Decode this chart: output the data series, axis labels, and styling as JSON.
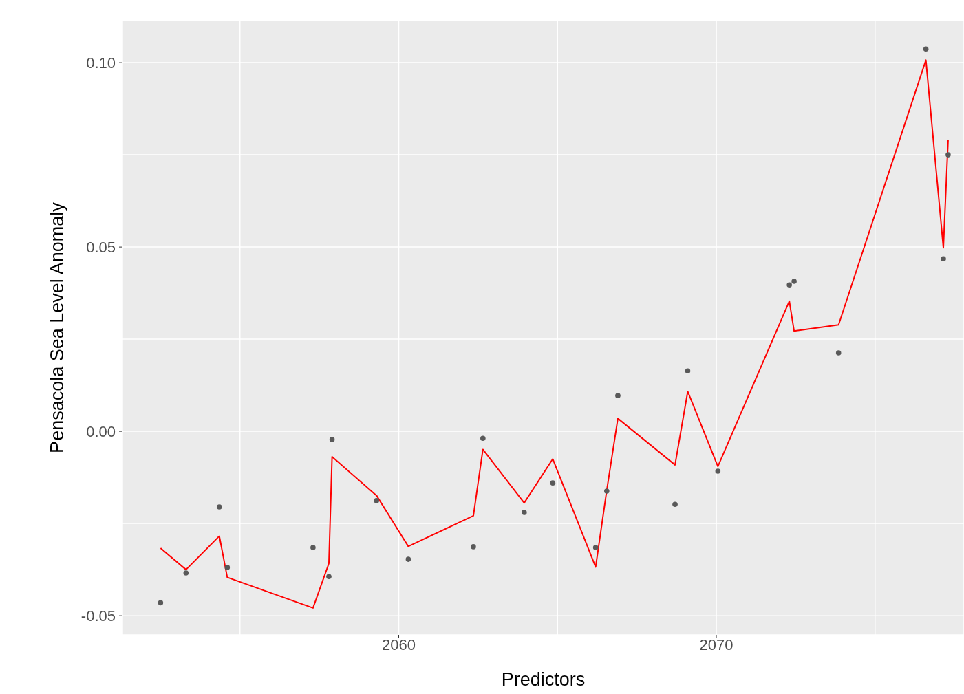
{
  "chart_data": {
    "type": "scatter",
    "xlabel": "Predictors",
    "ylabel": "Pensacola Sea Level Anomaly",
    "x": [
      2052.5,
      2053.3,
      2054.35,
      2054.6,
      2057.3,
      2057.8,
      2057.9,
      2059.3,
      2060.3,
      2062.35,
      2062.65,
      2063.95,
      2064.85,
      2066.2,
      2066.55,
      2066.9,
      2068.7,
      2069.1,
      2070.05,
      2072.3,
      2072.45,
      2073.85,
      2076.6,
      2077.15,
      2077.3
    ],
    "series": [
      {
        "marker": "circle",
        "color": "#595959",
        "values": [
          -0.0465,
          -0.0384,
          -0.0205,
          -0.0369,
          -0.0315,
          -0.0394,
          -0.0022,
          -0.0188,
          -0.0347,
          -0.0313,
          -0.0019,
          -0.022,
          -0.014,
          -0.0315,
          -0.0162,
          0.0097,
          -0.0198,
          0.0164,
          -0.0108,
          0.0397,
          0.0407,
          0.0213,
          0.1037,
          0.0468,
          0.075
        ]
      },
      {
        "type": "line",
        "color": "#ff0000",
        "values": [
          -0.0317,
          -0.0375,
          -0.0284,
          -0.0396,
          -0.0479,
          -0.0358,
          -0.0069,
          -0.0174,
          -0.0312,
          -0.0229,
          -0.0049,
          -0.0194,
          -0.0075,
          -0.0368,
          -0.016,
          0.0035,
          -0.0091,
          0.0108,
          -0.0095,
          0.0353,
          0.0272,
          0.0289,
          0.1007,
          0.0498,
          0.0791
        ]
      }
    ],
    "xlim": [
      2051.3,
      2077.8
    ],
    "ylim": [
      -0.0552,
      0.1114
    ],
    "xticks": [
      {
        "value": 2055,
        "label": null
      },
      2060,
      {
        "value": 2065,
        "label": null
      },
      2070,
      {
        "value": 2075,
        "label": null
      }
    ],
    "yticks": [
      {
        "value": -0.05,
        "label": "-0.05"
      },
      {
        "value": -0.025,
        "label": null
      },
      {
        "value": 0,
        "label": "0.00"
      },
      {
        "value": 0.025,
        "label": null
      },
      {
        "value": 0.05,
        "label": "0.05"
      },
      {
        "value": 0.075,
        "label": null
      },
      {
        "value": 0.1,
        "label": "0.10"
      }
    ],
    "grid": true
  }
}
